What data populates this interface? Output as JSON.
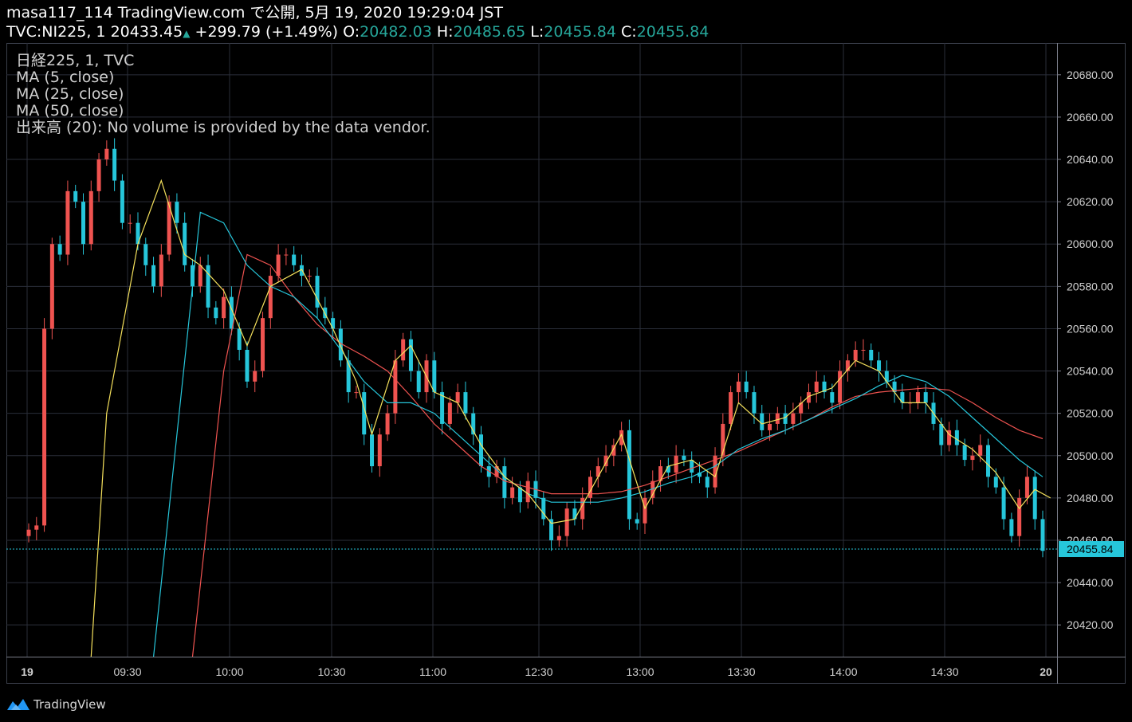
{
  "header": {
    "line1": "masa117_114 TradingView.com で公開, 5月 19, 2020 19:29:04 JST",
    "symbol": "TVC:NI225, 1",
    "last": "20433.45",
    "change": "+299.79 (+1.49%)",
    "o_label": "O:",
    "o_value": "20482.03",
    "h_label": "H:",
    "h_value": "20485.65",
    "l_label": "L:",
    "l_value": "20455.84",
    "c_label": "C:",
    "c_value": "20455.84"
  },
  "legend": {
    "series_name": "日経225, 1, TVC",
    "ma5": "MA (5, close)",
    "ma25": "MA (25, close)",
    "ma50": "MA (50, close)",
    "volume": "出来高 (20): No volume is provided by the data vendor."
  },
  "footer": {
    "brand": "TradingView"
  },
  "colors": {
    "up": "#ef5350",
    "down": "#26c6da",
    "ma5": "#f5e15c",
    "ma25": "#26c6da",
    "ma50": "#ef5350",
    "grid": "#2a2e39",
    "price_tag": "#26c6da"
  },
  "chart_data": {
    "type": "candlestick",
    "last_price_label": "20455.84",
    "y_ticks": [
      20420,
      20440,
      20460,
      20480,
      20500,
      20520,
      20540,
      20560,
      20580,
      20600,
      20620,
      20640,
      20660,
      20680
    ],
    "y_tick_labels": [
      "20420.00",
      "20440.00",
      "20460.00",
      "20480.00",
      "20500.00",
      "20520.00",
      "20540.00",
      "20560.00",
      "20580.00",
      "20600.00",
      "20620.00",
      "20640.00",
      "20660.00",
      "20680.00"
    ],
    "ylim": [
      20405,
      20695
    ],
    "x_labels": [
      "19",
      "09:30",
      "10:00",
      "10:30",
      "11:00",
      "12:30",
      "13:00",
      "13:30",
      "14:00",
      "14:30",
      "20"
    ],
    "close_path": [
      [
        0,
        20465
      ],
      [
        1,
        20467
      ],
      [
        2,
        20560
      ],
      [
        3,
        20600
      ],
      [
        4,
        20595
      ],
      [
        5,
        20625
      ],
      [
        6,
        20620
      ],
      [
        7,
        20600
      ],
      [
        8,
        20625
      ],
      [
        9,
        20640
      ],
      [
        10,
        20645
      ],
      [
        11,
        20630
      ],
      [
        12,
        20610
      ],
      [
        13,
        20610
      ],
      [
        14,
        20600
      ],
      [
        15,
        20590
      ],
      [
        16,
        20580
      ],
      [
        17,
        20595
      ],
      [
        18,
        20620
      ],
      [
        19,
        20610
      ],
      [
        20,
        20590
      ],
      [
        21,
        20580
      ],
      [
        22,
        20590
      ],
      [
        23,
        20570
      ],
      [
        24,
        20565
      ],
      [
        25,
        20575
      ],
      [
        26,
        20560
      ],
      [
        27,
        20550
      ],
      [
        28,
        20535
      ],
      [
        29,
        20540
      ],
      [
        30,
        20565
      ],
      [
        31,
        20585
      ],
      [
        32,
        20595
      ],
      [
        33,
        20595
      ],
      [
        34,
        20590
      ],
      [
        35,
        20585
      ],
      [
        36,
        20585
      ],
      [
        37,
        20570
      ],
      [
        38,
        20565
      ],
      [
        39,
        20560
      ],
      [
        40,
        20545
      ],
      [
        41,
        20530
      ],
      [
        42,
        20530
      ],
      [
        43,
        20510
      ],
      [
        44,
        20495
      ],
      [
        45,
        20510
      ],
      [
        46,
        20520
      ],
      [
        47,
        20545
      ],
      [
        48,
        20555
      ],
      [
        49,
        20540
      ],
      [
        50,
        20530
      ],
      [
        51,
        20545
      ],
      [
        52,
        20530
      ],
      [
        53,
        20515
      ],
      [
        54,
        20525
      ],
      [
        55,
        20530
      ],
      [
        56,
        20520
      ],
      [
        57,
        20510
      ],
      [
        58,
        20495
      ],
      [
        59,
        20490
      ],
      [
        60,
        20495
      ],
      [
        61,
        20480
      ],
      [
        62,
        20485
      ],
      [
        63,
        20478
      ],
      [
        64,
        20488
      ],
      [
        65,
        20480
      ],
      [
        66,
        20470
      ],
      [
        67,
        20460
      ],
      [
        68,
        20462
      ],
      [
        69,
        20475
      ],
      [
        70,
        20470
      ],
      [
        71,
        20480
      ],
      [
        72,
        20490
      ],
      [
        73,
        20495
      ],
      [
        74,
        20500
      ],
      [
        75,
        20505
      ],
      [
        76,
        20512
      ],
      [
        77,
        20470
      ],
      [
        78,
        20468
      ],
      [
        79,
        20480
      ],
      [
        80,
        20488
      ],
      [
        81,
        20495
      ],
      [
        82,
        20492
      ],
      [
        83,
        20500
      ],
      [
        84,
        20498
      ],
      [
        85,
        20492
      ],
      [
        86,
        20490
      ],
      [
        87,
        20485
      ],
      [
        88,
        20500
      ],
      [
        89,
        20515
      ],
      [
        90,
        20530
      ],
      [
        91,
        20535
      ],
      [
        92,
        20530
      ],
      [
        93,
        20520
      ],
      [
        94,
        20512
      ],
      [
        95,
        20515
      ],
      [
        96,
        20520
      ],
      [
        97,
        20515
      ],
      [
        98,
        20520
      ],
      [
        99,
        20525
      ],
      [
        100,
        20530
      ],
      [
        101,
        20535
      ],
      [
        102,
        20530
      ],
      [
        103,
        20525
      ],
      [
        104,
        20540
      ],
      [
        105,
        20545
      ],
      [
        106,
        20550
      ],
      [
        107,
        20550
      ],
      [
        108,
        20545
      ],
      [
        109,
        20540
      ],
      [
        110,
        20535
      ],
      [
        111,
        20530
      ],
      [
        112,
        20525
      ],
      [
        113,
        20525
      ],
      [
        114,
        20530
      ],
      [
        115,
        20525
      ],
      [
        116,
        20515
      ],
      [
        117,
        20505
      ],
      [
        118,
        20512
      ],
      [
        119,
        20505
      ],
      [
        120,
        20498
      ],
      [
        121,
        20500
      ],
      [
        122,
        20505
      ],
      [
        123,
        20490
      ],
      [
        124,
        20485
      ],
      [
        125,
        20470
      ],
      [
        126,
        20462
      ],
      [
        127,
        20480
      ],
      [
        128,
        20490
      ],
      [
        129,
        20470
      ],
      [
        130,
        20455
      ]
    ],
    "ma5_path": [
      [
        8,
        20405
      ],
      [
        10,
        20520
      ],
      [
        14,
        20600
      ],
      [
        17,
        20630
      ],
      [
        20,
        20595
      ],
      [
        22,
        20590
      ],
      [
        25,
        20578
      ],
      [
        28,
        20552
      ],
      [
        31,
        20580
      ],
      [
        35,
        20588
      ],
      [
        39,
        20560
      ],
      [
        42,
        20535
      ],
      [
        44,
        20510
      ],
      [
        47,
        20545
      ],
      [
        49,
        20552
      ],
      [
        52,
        20530
      ],
      [
        55,
        20525
      ],
      [
        58,
        20505
      ],
      [
        61,
        20490
      ],
      [
        64,
        20482
      ],
      [
        67,
        20468
      ],
      [
        70,
        20470
      ],
      [
        73,
        20490
      ],
      [
        76,
        20510
      ],
      [
        79,
        20475
      ],
      [
        82,
        20495
      ],
      [
        85,
        20498
      ],
      [
        88,
        20490
      ],
      [
        91,
        20525
      ],
      [
        94,
        20515
      ],
      [
        97,
        20518
      ],
      [
        100,
        20528
      ],
      [
        103,
        20532
      ],
      [
        106,
        20545
      ],
      [
        109,
        20540
      ],
      [
        112,
        20525
      ],
      [
        115,
        20525
      ],
      [
        118,
        20510
      ],
      [
        121,
        20503
      ],
      [
        124,
        20492
      ],
      [
        127,
        20475
      ],
      [
        129,
        20484
      ],
      [
        131,
        20480
      ]
    ],
    "ma25_path": [
      [
        16,
        20405
      ],
      [
        22,
        20615
      ],
      [
        25,
        20610
      ],
      [
        28,
        20590
      ],
      [
        31,
        20580
      ],
      [
        34,
        20575
      ],
      [
        37,
        20565
      ],
      [
        40,
        20550
      ],
      [
        43,
        20535
      ],
      [
        46,
        20525
      ],
      [
        49,
        20525
      ],
      [
        52,
        20520
      ],
      [
        55,
        20510
      ],
      [
        58,
        20500
      ],
      [
        61,
        20490
      ],
      [
        64,
        20482
      ],
      [
        67,
        20478
      ],
      [
        70,
        20478
      ],
      [
        73,
        20478
      ],
      [
        76,
        20480
      ],
      [
        79,
        20483
      ],
      [
        82,
        20487
      ],
      [
        85,
        20490
      ],
      [
        88,
        20495
      ],
      [
        91,
        20503
      ],
      [
        94,
        20508
      ],
      [
        97,
        20512
      ],
      [
        100,
        20517
      ],
      [
        103,
        20522
      ],
      [
        106,
        20527
      ],
      [
        109,
        20533
      ],
      [
        112,
        20538
      ],
      [
        115,
        20535
      ],
      [
        118,
        20528
      ],
      [
        121,
        20518
      ],
      [
        124,
        20508
      ],
      [
        127,
        20498
      ],
      [
        130,
        20490
      ]
    ],
    "ma50_path": [
      [
        21,
        20405
      ],
      [
        25,
        20540
      ],
      [
        28,
        20595
      ],
      [
        31,
        20590
      ],
      [
        34,
        20575
      ],
      [
        37,
        20562
      ],
      [
        40,
        20553
      ],
      [
        43,
        20547
      ],
      [
        46,
        20540
      ],
      [
        49,
        20528
      ],
      [
        52,
        20515
      ],
      [
        55,
        20505
      ],
      [
        58,
        20495
      ],
      [
        61,
        20488
      ],
      [
        64,
        20485
      ],
      [
        67,
        20482
      ],
      [
        70,
        20482
      ],
      [
        73,
        20482
      ],
      [
        76,
        20483
      ],
      [
        79,
        20486
      ],
      [
        82,
        20490
      ],
      [
        85,
        20494
      ],
      [
        88,
        20498
      ],
      [
        91,
        20502
      ],
      [
        94,
        20507
      ],
      [
        97,
        20512
      ],
      [
        100,
        20517
      ],
      [
        103,
        20523
      ],
      [
        106,
        20528
      ],
      [
        109,
        20530
      ],
      [
        112,
        20531
      ],
      [
        115,
        20532
      ],
      [
        118,
        20531
      ],
      [
        121,
        20525
      ],
      [
        124,
        20518
      ],
      [
        127,
        20512
      ],
      [
        130,
        20508
      ]
    ]
  }
}
